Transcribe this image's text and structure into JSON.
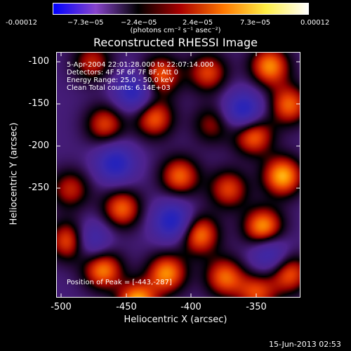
{
  "colorbar": {
    "ticks": [
      "-0.00012",
      "−7.3e−05",
      "−2.4e−05",
      "2.4e−05",
      "7.3e−05",
      "0.00012"
    ],
    "unit": "(photons cm⁻² s⁻¹ asec⁻²)",
    "colors": [
      "#0000ff",
      "#8844cc",
      "#000000",
      "#aa0000",
      "#ff7700",
      "#ffee44",
      "#ffffff"
    ]
  },
  "plot": {
    "title": "Reconstructed RHESSI Image",
    "info_lines": [
      "5-Apr-2004 22:01:28.000 to 22:07:14.000",
      "Detectors: 4F 5F 6F 7F 8F, Att 0",
      "Energy Range: 25.0 - 50.0 keV",
      "Clean    Total counts: 6.14E+03"
    ],
    "peak_text": "Position of Peak = [-443,-287]",
    "xlabel": "Heliocentric X (arcsec)",
    "ylabel": "Heliocentric Y (arcsec)",
    "xticks": [
      "-500",
      "-450",
      "-400",
      "-350"
    ],
    "yticks": [
      "-100",
      "-150",
      "-200",
      "-250"
    ]
  },
  "footer": {
    "timestamp": "15-Jun-2013 02:53"
  },
  "chart_data": {
    "type": "heatmap",
    "title": "Reconstructed RHESSI Image",
    "xlabel": "Heliocentric X (arcsec)",
    "ylabel": "Heliocentric Y (arcsec)",
    "xlim": [
      -505,
      -315
    ],
    "ylim": [
      -285,
      -95
    ],
    "colorbar_range": [
      -0.00012,
      0.00012
    ],
    "peak": [
      -443,
      -287
    ],
    "blobs": [
      {
        "x": -478,
        "y": -102,
        "v": 0.6
      },
      {
        "x": -425,
        "y": -112,
        "v": 0.8
      },
      {
        "x": -388,
        "y": -110,
        "v": 0.7
      },
      {
        "x": -340,
        "y": -105,
        "v": 0.9
      },
      {
        "x": -325,
        "y": -135,
        "v": 0.8
      },
      {
        "x": -468,
        "y": -150,
        "v": 0.7
      },
      {
        "x": -430,
        "y": -145,
        "v": 0.8
      },
      {
        "x": -385,
        "y": -150,
        "v": 0.5
      },
      {
        "x": -353,
        "y": -158,
        "v": 0.9
      },
      {
        "x": -330,
        "y": -190,
        "v": 1.0
      },
      {
        "x": -495,
        "y": -200,
        "v": 0.6
      },
      {
        "x": -410,
        "y": -190,
        "v": 0.8
      },
      {
        "x": -372,
        "y": -200,
        "v": 0.7
      },
      {
        "x": -455,
        "y": -215,
        "v": 0.8
      },
      {
        "x": -395,
        "y": -235,
        "v": 0.9
      },
      {
        "x": -345,
        "y": -230,
        "v": 1.0
      },
      {
        "x": -325,
        "y": -265,
        "v": 0.8
      },
      {
        "x": -495,
        "y": -240,
        "v": 0.9
      },
      {
        "x": -470,
        "y": -262,
        "v": 0.9
      },
      {
        "x": -420,
        "y": -265,
        "v": 0.9
      },
      {
        "x": -375,
        "y": -268,
        "v": 0.8
      },
      {
        "x": -443,
        "y": -287,
        "v": 1.0
      },
      {
        "x": -350,
        "y": -280,
        "v": 0.7
      },
      {
        "x": -460,
        "y": -180,
        "v": -0.8
      },
      {
        "x": -415,
        "y": -225,
        "v": -0.9
      },
      {
        "x": -445,
        "y": -125,
        "v": -0.8
      },
      {
        "x": -360,
        "y": -140,
        "v": -0.9
      },
      {
        "x": -480,
        "y": -240,
        "v": -0.7
      },
      {
        "x": -340,
        "y": -250,
        "v": -0.7
      }
    ]
  }
}
